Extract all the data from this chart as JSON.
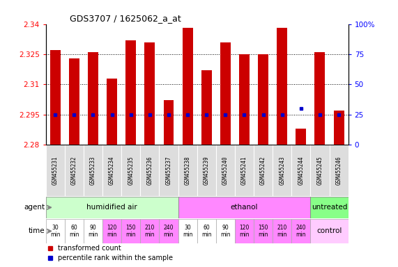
{
  "title": "GDS3707 / 1625062_a_at",
  "samples": [
    "GSM455231",
    "GSM455232",
    "GSM455233",
    "GSM455234",
    "GSM455235",
    "GSM455236",
    "GSM455237",
    "GSM455238",
    "GSM455239",
    "GSM455240",
    "GSM455241",
    "GSM455242",
    "GSM455243",
    "GSM455244",
    "GSM455245",
    "GSM455246"
  ],
  "transformed_count": [
    2.327,
    2.323,
    2.326,
    2.313,
    2.332,
    2.331,
    2.302,
    2.338,
    2.317,
    2.331,
    2.325,
    2.325,
    2.338,
    2.288,
    2.326,
    2.297
  ],
  "percentile_rank": [
    25,
    25,
    25,
    25,
    25,
    25,
    25,
    25,
    25,
    25,
    25,
    25,
    25,
    30,
    25,
    25
  ],
  "ymin": 2.28,
  "ymax": 2.34,
  "yticks": [
    2.28,
    2.295,
    2.31,
    2.325,
    2.34
  ],
  "right_yticks": [
    0,
    25,
    50,
    75,
    100
  ],
  "right_yticklabels": [
    "0",
    "25",
    "50",
    "75",
    "100%"
  ],
  "agent_groups": [
    {
      "label": "humidified air",
      "start": 0,
      "end": 7,
      "color": "#ccffcc"
    },
    {
      "label": "ethanol",
      "start": 7,
      "end": 14,
      "color": "#ff88ff"
    },
    {
      "label": "untreated",
      "start": 14,
      "end": 16,
      "color": "#88ff88"
    }
  ],
  "time_labels": [
    "30\nmin",
    "60\nmin",
    "90\nmin",
    "120\nmin",
    "150\nmin",
    "210\nmin",
    "240\nmin",
    "30\nmin",
    "60\nmin",
    "90\nmin",
    "120\nmin",
    "150\nmin",
    "210\nmin",
    "240\nmin"
  ],
  "time_colors": [
    "#ffffff",
    "#ffffff",
    "#ffffff",
    "#ff88ff",
    "#ff88ff",
    "#ff88ff",
    "#ff88ff",
    "#ffffff",
    "#ffffff",
    "#ffffff",
    "#ff88ff",
    "#ff88ff",
    "#ff88ff",
    "#ff88ff"
  ],
  "control_label": "control",
  "control_color": "#ffccff",
  "bar_color": "#cc0000",
  "blue_color": "#0000cc",
  "bar_bottom": 2.28,
  "sample_bg": "#cccccc",
  "grid_dotted_ticks": [
    2.295,
    2.31,
    2.325
  ]
}
